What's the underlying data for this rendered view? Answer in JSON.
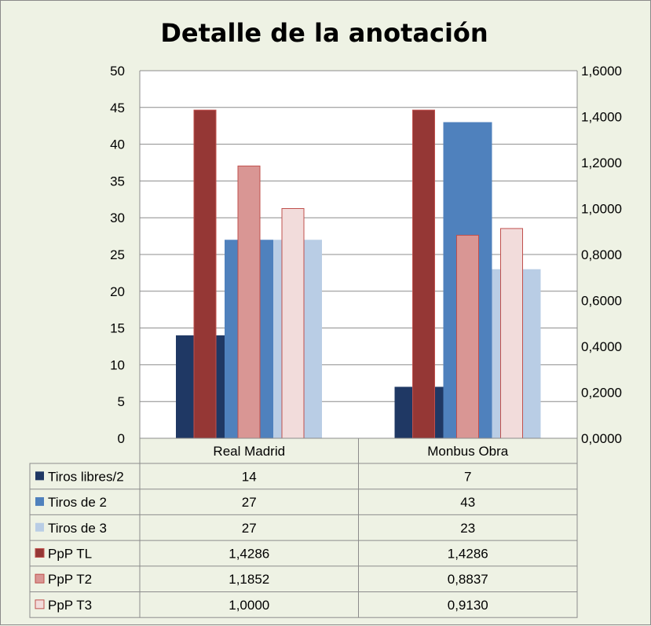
{
  "chart_data": {
    "type": "bar",
    "title": "Detalle de la anotación",
    "categories": [
      "Real Madrid",
      "Monbus Obra"
    ],
    "primary_axis": {
      "ylim": [
        0,
        50
      ],
      "ticks": [
        "0",
        "5",
        "10",
        "15",
        "20",
        "25",
        "30",
        "35",
        "40",
        "45",
        "50"
      ]
    },
    "secondary_axis": {
      "ylim": [
        0,
        1.6
      ],
      "ticks": [
        "0,0000",
        "0,2000",
        "0,4000",
        "0,6000",
        "0,8000",
        "1,0000",
        "1,2000",
        "1,4000",
        "1,6000"
      ]
    },
    "grid": true,
    "legend": "data-table",
    "series": [
      {
        "name": "Tiros libres/2",
        "axis": "primary",
        "values": [
          14,
          7
        ],
        "labels": [
          "14",
          "7"
        ],
        "color": "#1f3864"
      },
      {
        "name": "Tiros de 2",
        "axis": "primary",
        "values": [
          27,
          43
        ],
        "labels": [
          "27",
          "43"
        ],
        "color": "#4f81bd"
      },
      {
        "name": "Tiros de 3",
        "axis": "primary",
        "values": [
          27,
          23
        ],
        "labels": [
          "27",
          "23"
        ],
        "color": "#b9cde5"
      },
      {
        "name": "PpP TL",
        "axis": "secondary",
        "values": [
          1.4286,
          1.4286
        ],
        "labels": [
          "1,4286",
          "1,4286"
        ],
        "color": "#953735"
      },
      {
        "name": "PpP T2",
        "axis": "secondary",
        "values": [
          1.1852,
          0.8837
        ],
        "labels": [
          "1,1852",
          "0,8837"
        ],
        "color": "#d99694"
      },
      {
        "name": "PpP T3",
        "axis": "secondary",
        "values": [
          1.0,
          0.913
        ],
        "labels": [
          "1,0000",
          "0,9130"
        ],
        "color": "#f2dcdb"
      }
    ]
  }
}
